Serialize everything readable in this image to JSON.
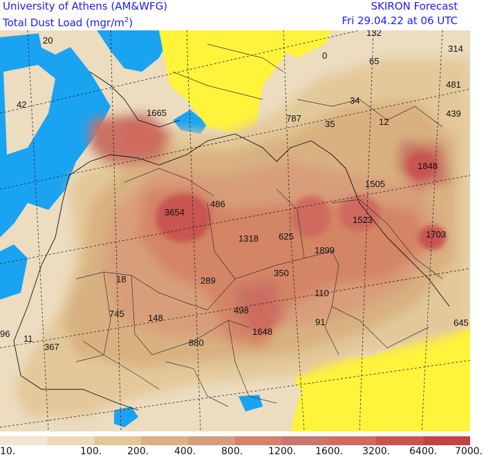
{
  "header": {
    "left_line1": "University of Athens (AM&WFG)",
    "left_line2_prefix": "Total Dust Load (mgr/m",
    "left_line2_sup": "2",
    "left_line2_suffix": ")",
    "right_line1": "SKIRON Forecast",
    "right_line2": "Fri 29.04.22 at 06 UTC"
  },
  "colors": {
    "sea": "#1aa3f0",
    "low_dust": "#fff33c",
    "dust_100": "#ecdcc0",
    "dust_200": "#e3c99a",
    "dust_400": "#d9b181",
    "dust_800": "#d89e7a",
    "dust_1200": "#d48565",
    "dust_1600": "#c97264",
    "dust_3200": "#cf6a5e",
    "dust_6400": "#c85550",
    "dust_7000": "#bf4545"
  },
  "colorbar": {
    "colors": [
      "#f0e6d2",
      "#ecd9b8",
      "#e5c796",
      "#dcb084",
      "#d59d7e",
      "#d4836a",
      "#c9766e",
      "#d06a60",
      "#c85550",
      "#bf4545"
    ],
    "ticks": [
      "10.",
      "100.",
      "200.",
      "400.",
      "800.",
      "1200.",
      "1600.",
      "3200.",
      "6400.",
      "7000."
    ]
  },
  "map_values": [
    {
      "text": "20"
    },
    {
      "text": "42"
    },
    {
      "text": "1665"
    },
    {
      "text": "3654"
    },
    {
      "text": "486"
    },
    {
      "text": "1318"
    },
    {
      "text": "625"
    },
    {
      "text": "1899"
    },
    {
      "text": "1523"
    },
    {
      "text": "1505"
    },
    {
      "text": "1848"
    },
    {
      "text": "1703"
    },
    {
      "text": "314"
    },
    {
      "text": "481"
    },
    {
      "text": "439"
    },
    {
      "text": "65"
    },
    {
      "text": "34"
    },
    {
      "text": "12"
    },
    {
      "text": "35"
    },
    {
      "text": "787"
    },
    {
      "text": "0"
    },
    {
      "text": "132"
    },
    {
      "text": "18"
    },
    {
      "text": "289"
    },
    {
      "text": "350"
    },
    {
      "text": "110"
    },
    {
      "text": "91"
    },
    {
      "text": "498"
    },
    {
      "text": "1648"
    },
    {
      "text": "745"
    },
    {
      "text": "148"
    },
    {
      "text": "880"
    },
    {
      "text": "367"
    },
    {
      "text": "11"
    },
    {
      "text": "96"
    },
    {
      "text": "645"
    }
  ]
}
